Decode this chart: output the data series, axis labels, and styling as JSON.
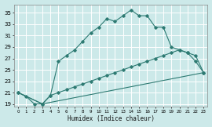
{
  "xlabel": "Humidex (Indice chaleur)",
  "background_color": "#cce9e9",
  "grid_color": "#ffffff",
  "line_color": "#2d7a72",
  "xlim": [
    -0.5,
    23.5
  ],
  "ylim": [
    18.5,
    36.5
  ],
  "yticks": [
    19,
    21,
    23,
    25,
    27,
    29,
    31,
    33,
    35
  ],
  "xticks": [
    0,
    1,
    2,
    3,
    4,
    5,
    6,
    7,
    8,
    9,
    10,
    11,
    12,
    13,
    14,
    15,
    16,
    17,
    18,
    19,
    20,
    21,
    22,
    23
  ],
  "curve1_x": [
    0,
    1,
    2,
    3,
    4,
    5,
    6,
    7,
    8,
    9,
    10,
    11,
    12,
    13,
    14,
    15,
    16,
    17,
    18,
    19,
    20,
    21,
    22,
    23
  ],
  "curve1_y": [
    21,
    20.3,
    19.0,
    19.0,
    20.5,
    26.5,
    27.5,
    28.5,
    30.0,
    31.5,
    32.5,
    34.0,
    33.5,
    34.5,
    35.5,
    34.5,
    34.5,
    32.5,
    32.5,
    29.0,
    28.5,
    28.0,
    26.5,
    24.5
  ],
  "curve2_x": [
    0,
    3,
    4,
    5,
    6,
    7,
    8,
    9,
    10,
    11,
    12,
    13,
    14,
    15,
    16,
    17,
    18,
    19,
    20,
    21,
    22,
    23
  ],
  "curve2_y": [
    21,
    19.0,
    20.5,
    21.0,
    21.5,
    22.0,
    22.5,
    23.0,
    23.5,
    24.0,
    24.5,
    25.0,
    25.5,
    26.0,
    26.5,
    27.0,
    27.5,
    28.0,
    28.5,
    28.0,
    27.5,
    24.5
  ],
  "curve3_x": [
    0,
    3,
    23
  ],
  "curve3_y": [
    21,
    19.0,
    24.5
  ]
}
